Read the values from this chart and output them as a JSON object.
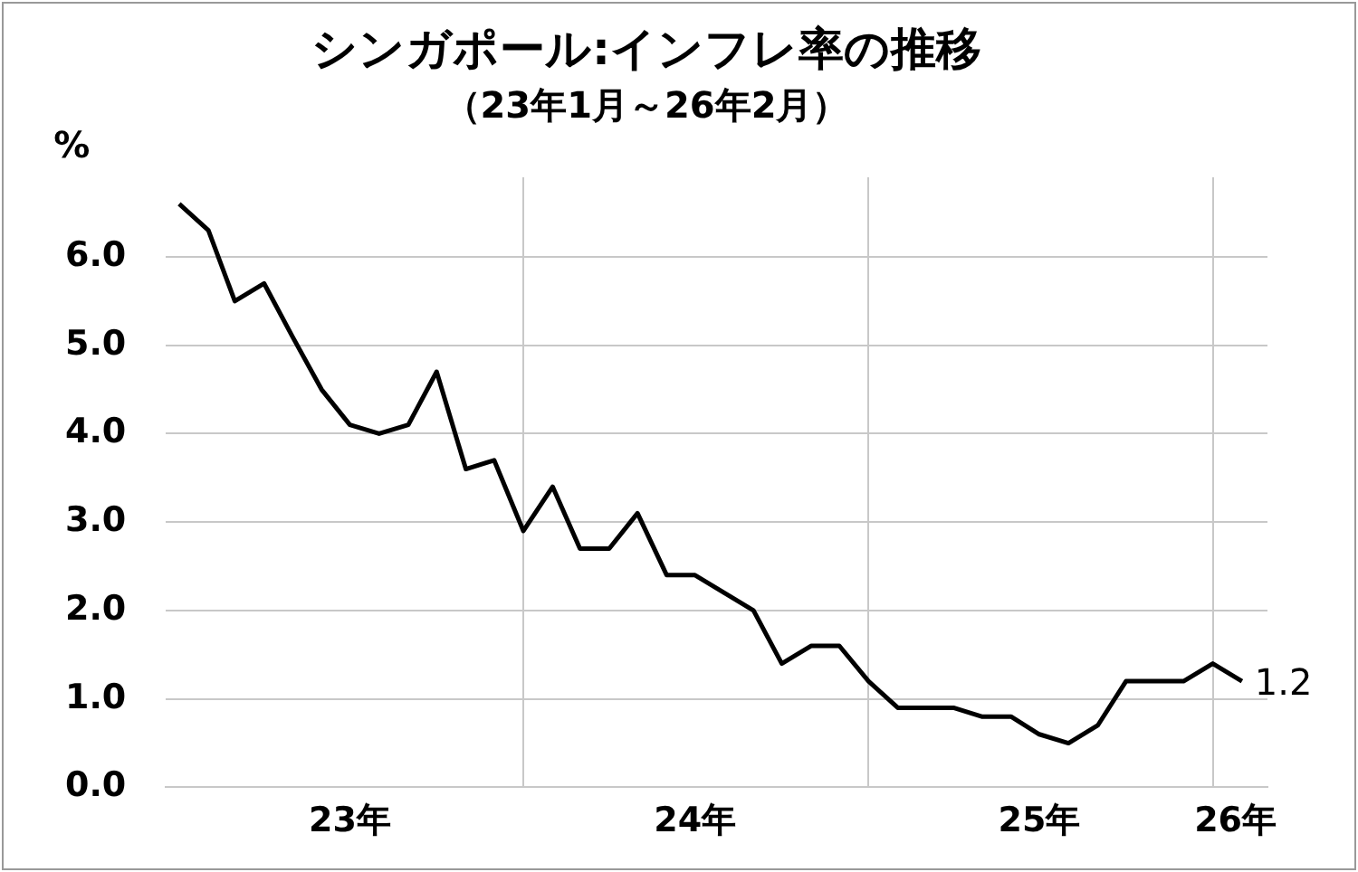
{
  "chart_data": {
    "type": "line",
    "title": "シンガポール:インフレ率の推移",
    "subtitle": "（23年1月～26年2月）",
    "ylabel": "%",
    "x": [
      "2023-01",
      "2023-02",
      "2023-03",
      "2023-04",
      "2023-05",
      "2023-06",
      "2023-07",
      "2023-08",
      "2023-09",
      "2023-10",
      "2023-11",
      "2023-12",
      "2024-01",
      "2024-02",
      "2024-03",
      "2024-04",
      "2024-05",
      "2024-06",
      "2024-07",
      "2024-08",
      "2024-09",
      "2024-10",
      "2024-11",
      "2024-12",
      "2025-01",
      "2025-02",
      "2025-03",
      "2025-04",
      "2025-05",
      "2025-06",
      "2025-07",
      "2025-08",
      "2025-09",
      "2025-10",
      "2025-11",
      "2025-12",
      "2026-01",
      "2026-02"
    ],
    "series": [
      {
        "color": "#000000",
        "values": [
          6.6,
          6.3,
          5.5,
          5.7,
          5.1,
          4.5,
          4.1,
          4.0,
          4.1,
          4.7,
          3.6,
          3.7,
          2.9,
          3.4,
          2.7,
          2.7,
          3.1,
          2.4,
          2.4,
          2.2,
          2.0,
          1.4,
          1.6,
          1.6,
          1.2,
          0.9,
          0.9,
          0.9,
          0.8,
          0.8,
          0.6,
          0.5,
          0.7,
          1.2,
          1.2,
          1.2,
          1.4,
          1.2
        ]
      }
    ],
    "xlim": [
      "2022-12-18",
      "2026-02-28"
    ],
    "xticks": [
      {
        "value": "2023-07-01",
        "label": "23年"
      },
      {
        "value": "2024-01-01",
        "label": null
      },
      {
        "value": "2024-07-01",
        "label": "24年"
      },
      {
        "value": "2025-01-01",
        "label": null
      },
      {
        "value": "2025-07-01",
        "label": "25年"
      },
      {
        "value": "2026-01-01",
        "label": null
      },
      {
        "value": "2026-01-25",
        "label": "26年"
      }
    ],
    "ylim": [
      0,
      6.9
    ],
    "yticks": [
      {
        "value": 0,
        "label": "0.0"
      },
      {
        "value": 1,
        "label": "1.0"
      },
      {
        "value": 2,
        "label": "2.0"
      },
      {
        "value": 3,
        "label": "3.0"
      },
      {
        "value": 4,
        "label": "4.0"
      },
      {
        "value": 5,
        "label": "5.0"
      },
      {
        "value": 6,
        "label": "6.0"
      }
    ],
    "grid": true,
    "legend": false,
    "marker": "none",
    "line_style": "solid",
    "annotations": [
      {
        "text": "1.2",
        "x": "2026-02",
        "y": 1.2
      }
    ]
  }
}
